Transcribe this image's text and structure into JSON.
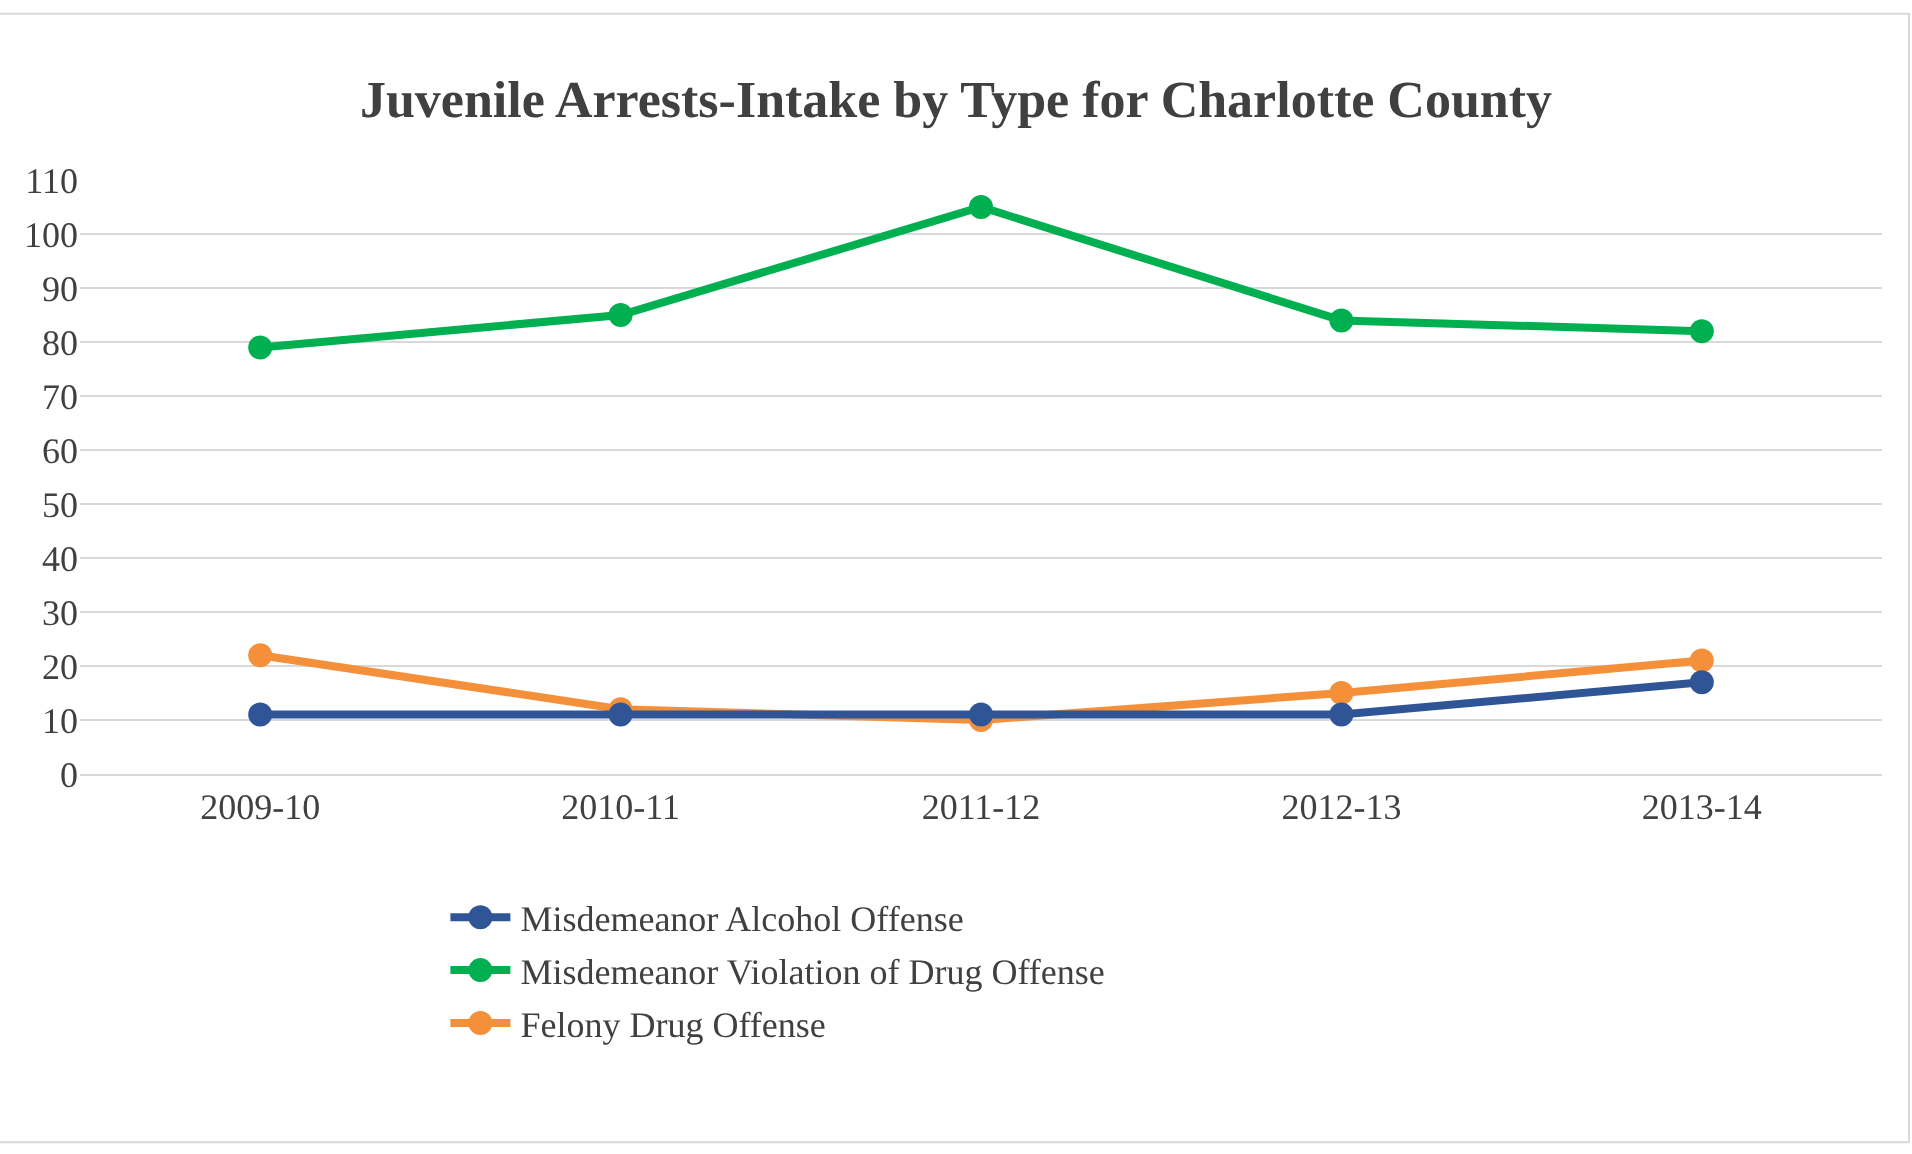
{
  "chart_data": {
    "type": "line",
    "title": "Juvenile Arrests-Intake by Type for Charlotte County",
    "categories": [
      "2009-10",
      "2010-11",
      "2011-12",
      "2012-13",
      "2013-14"
    ],
    "series": [
      {
        "name": "Misdemeanor Alcohol Offense",
        "color": "#2f5597",
        "values": [
          11,
          11,
          11,
          11,
          17
        ]
      },
      {
        "name": "Misdemeanor Violation of Drug Offense",
        "color": "#00b050",
        "values": [
          79,
          85,
          105,
          84,
          82
        ]
      },
      {
        "name": "Felony Drug Offense",
        "color": "#f4903a",
        "values": [
          22,
          12,
          10,
          15,
          21
        ]
      }
    ],
    "ylim": [
      0,
      110
    ],
    "yticks": [
      0,
      10,
      20,
      30,
      40,
      50,
      60,
      70,
      80,
      90,
      100,
      110
    ],
    "grid": "y",
    "legend": "bottom",
    "marker": "circle",
    "line_style": "solid"
  }
}
